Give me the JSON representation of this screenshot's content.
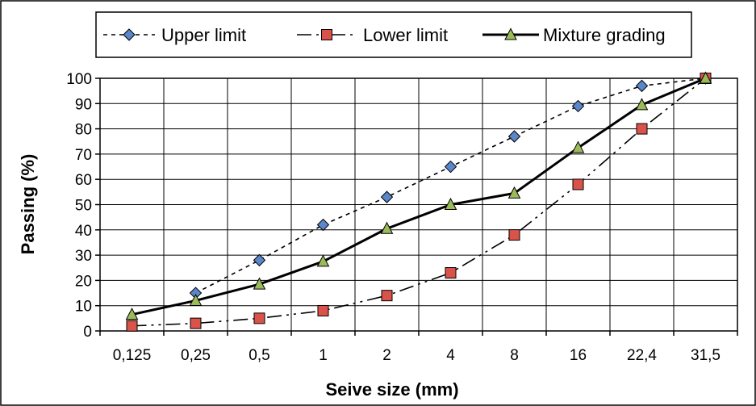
{
  "chart_data": {
    "type": "line",
    "categories": [
      "0,125",
      "0,25",
      "0,5",
      "1",
      "2",
      "4",
      "8",
      "16",
      "22,4",
      "31,5"
    ],
    "xlabel": "Seive size (mm)",
    "ylabel": "Passing (%)",
    "ylim": [
      0,
      100
    ],
    "yticks": [
      0,
      10,
      20,
      30,
      40,
      50,
      60,
      70,
      80,
      90,
      100
    ],
    "grid": true,
    "legend_position": "top",
    "series": [
      {
        "name": "Upper limit",
        "values": [
          null,
          15,
          28,
          42,
          53,
          65,
          77,
          89,
          97,
          100
        ],
        "line_style": "dashed",
        "marker": "diamond",
        "marker_color": "#5b86c9",
        "line_color": "#000000"
      },
      {
        "name": "Lower limit",
        "values": [
          2,
          3,
          5,
          8,
          14,
          23,
          38,
          58,
          80,
          100
        ],
        "line_style": "dash-dot-dot",
        "marker": "square",
        "marker_color": "#d9534a",
        "line_color": "#000000"
      },
      {
        "name": "Mixture grading",
        "values": [
          6.5,
          12,
          18.5,
          27.5,
          40.5,
          50,
          54.5,
          72.5,
          89.5,
          100
        ],
        "line_style": "solid",
        "marker": "triangle",
        "marker_color": "#9bbb59",
        "line_color": "#000000"
      }
    ]
  }
}
